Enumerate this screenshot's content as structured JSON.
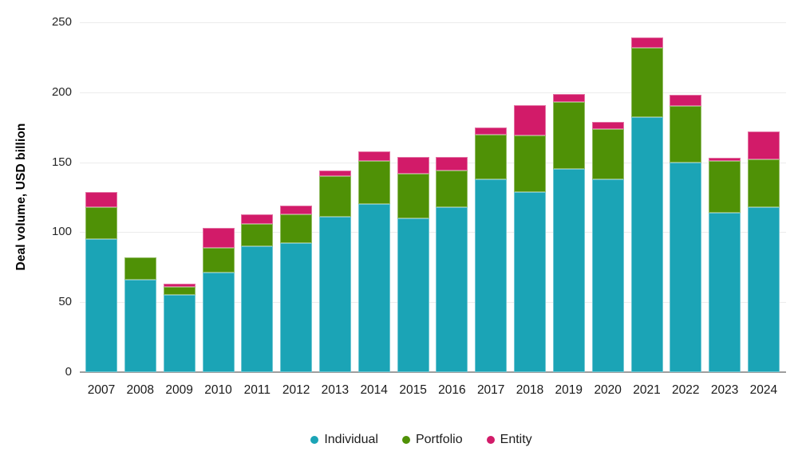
{
  "chart_data": {
    "type": "bar",
    "stacked": true,
    "title": "",
    "xlabel": "",
    "ylabel": "Deal volume, USD billion",
    "ylim": [
      0,
      250
    ],
    "yticks": [
      0,
      50,
      100,
      150,
      200,
      250
    ],
    "grid": true,
    "legend_position": "bottom-center",
    "categories": [
      "2007",
      "2008",
      "2009",
      "2010",
      "2011",
      "2012",
      "2013",
      "2014",
      "2015",
      "2016",
      "2017",
      "2018",
      "2019",
      "2020",
      "2021",
      "2022",
      "2023",
      "2024"
    ],
    "series": [
      {
        "name": "Individual",
        "color": "#1BA4B6",
        "values": [
          95,
          66,
          55,
          71,
          90,
          92,
          111,
          120,
          110,
          118,
          138,
          129,
          145,
          138,
          182,
          150,
          114,
          118
        ]
      },
      {
        "name": "Portfolio",
        "color": "#4F9106",
        "values": [
          23,
          16,
          6,
          18,
          16,
          21,
          29,
          31,
          32,
          26,
          32,
          40,
          48,
          36,
          50,
          40,
          37,
          34
        ]
      },
      {
        "name": "Entity",
        "color": "#D21B69",
        "values": [
          11,
          0,
          2,
          14,
          7,
          6,
          4,
          7,
          12,
          10,
          5,
          22,
          6,
          5,
          7,
          8,
          2,
          20
        ]
      }
    ],
    "totals": [
      129,
      82,
      63,
      103,
      113,
      119,
      144,
      158,
      154,
      154,
      175,
      191,
      199,
      179,
      239,
      198,
      153,
      172
    ]
  },
  "axis_colors": {
    "gridline": "#ECECEC",
    "baseline": "#9E9E9E",
    "tick_text": "#262626"
  }
}
